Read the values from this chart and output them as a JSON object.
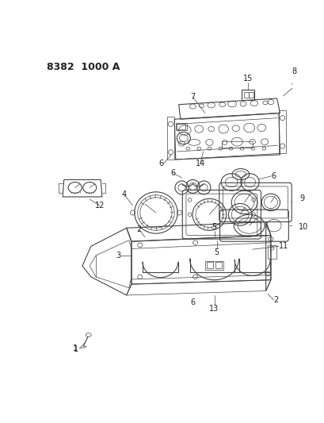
{
  "title": "8382  1000 A",
  "bg_color": "#ffffff",
  "line_color": "#444444",
  "label_color": "#222222",
  "title_fontsize": 9,
  "fig_width": 4.1,
  "fig_height": 5.33,
  "dpi": 100
}
